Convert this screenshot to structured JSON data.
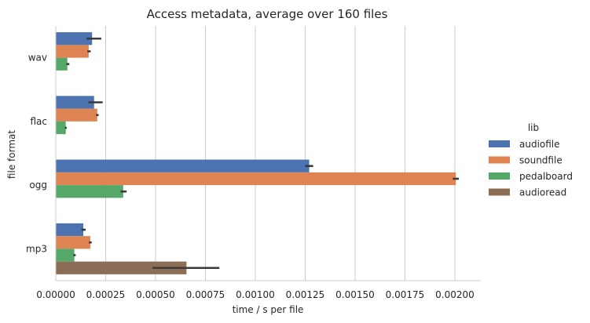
{
  "chart_data": {
    "type": "bar",
    "orientation": "horizontal",
    "title": "Access metadata, average over 160 files",
    "xlabel": "time / s per file",
    "ylabel": "file format",
    "categories": [
      "wav",
      "flac",
      "ogg",
      "mp3"
    ],
    "xlim": [
      0,
      0.00213
    ],
    "xticks": [
      0,
      0.00025,
      0.0005,
      0.00075,
      0.001,
      0.00125,
      0.0015,
      0.00175,
      0.002
    ],
    "xtick_labels": [
      "0.00000",
      "0.00025",
      "0.00050",
      "0.00075",
      "0.00100",
      "0.00125",
      "0.00150",
      "0.00175",
      "0.00200"
    ],
    "grid": "vertical",
    "legend": {
      "title": "lib",
      "placement": "right"
    },
    "series": [
      {
        "name": "audiofile",
        "color": "#4c72b0",
        "values": [
          0.000182,
          0.000192,
          0.00127,
          0.000138
        ],
        "error": [
          [
            0.000154,
            0.000228
          ],
          [
            0.000164,
            0.000235
          ],
          [
            0.00125,
            0.00129
          ],
          [
            0.000128,
            0.00015
          ]
        ]
      },
      {
        "name": "soundfile",
        "color": "#dd8452",
        "values": [
          0.000165,
          0.000208,
          0.002005,
          0.000173
        ],
        "error": [
          [
            0.000158,
            0.000175
          ],
          [
            0.000202,
            0.000215
          ],
          [
            0.00199,
            0.00202
          ],
          [
            0.000166,
            0.00018
          ]
        ]
      },
      {
        "name": "pedalboard",
        "color": "#55a868",
        "values": [
          5.8e-05,
          5e-05,
          0.000338,
          9.3e-05
        ],
        "error": [
          [
            5.3e-05,
            6.8e-05
          ],
          [
            4.6e-05,
            5.5e-05
          ],
          [
            0.000325,
            0.000355
          ],
          [
            8.8e-05,
            0.0001
          ]
        ]
      },
      {
        "name": "audioread",
        "color": "#8c6d56",
        "values": [
          null,
          null,
          null,
          0.000655
        ],
        "error": [
          null,
          null,
          null,
          [
            0.000485,
            0.00082
          ]
        ]
      }
    ]
  }
}
